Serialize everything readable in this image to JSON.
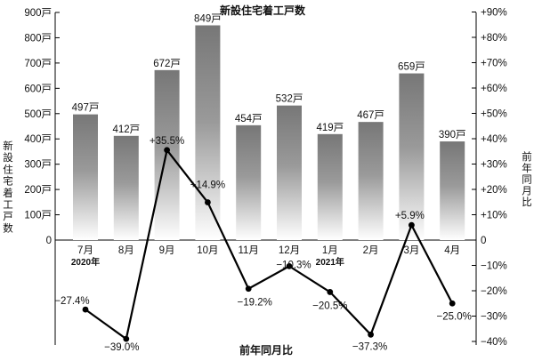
{
  "chart_data": {
    "type": "bar+line",
    "title": "新設住宅着工戸数",
    "bottom_title": "前年同月比",
    "left_axis": {
      "label": "新設住宅着工戸数",
      "ticks": [
        "0",
        "100戸",
        "200戸",
        "300戸",
        "400戸",
        "500戸",
        "600戸",
        "700戸",
        "800戸",
        "900戸"
      ],
      "ylim": [
        0,
        900
      ]
    },
    "right_axis": {
      "label": "前年同月比",
      "ticks": [
        "−40%",
        "−30%",
        "−20%",
        "−10%",
        "0",
        "+10%",
        "+20%",
        "+30%",
        "+40%",
        "+50%",
        "+60%",
        "+70%",
        "+80%",
        "+90%"
      ],
      "ylim": [
        -40,
        90
      ]
    },
    "categories": [
      "7月",
      "8月",
      "9月",
      "10月",
      "11月",
      "12月",
      "1月",
      "2月",
      "3月",
      "4月"
    ],
    "year_labels": [
      {
        "index": 0,
        "text": "2020年"
      },
      {
        "index": 6,
        "text": "2021年"
      }
    ],
    "bars": {
      "values": [
        497,
        412,
        672,
        849,
        454,
        532,
        419,
        467,
        659,
        390
      ],
      "labels": [
        "497戸",
        "412戸",
        "672戸",
        "849戸",
        "454戸",
        "532戸",
        "419戸",
        "467戸",
        "659戸",
        "390戸"
      ],
      "color_top": "#777777",
      "color_bottom": "#ffffff"
    },
    "line": {
      "values": [
        -27.4,
        -39.0,
        35.5,
        14.9,
        -19.2,
        -10.3,
        -20.5,
        -37.3,
        5.9,
        -25.0
      ],
      "labels": [
        "−27.4%",
        "−39.0%",
        "+35.5%",
        "+14.9%",
        "−19.2%",
        "−10.3%",
        "−20.5%",
        "−37.3%",
        "+5.9%",
        "−25.0%"
      ],
      "color": "#000000"
    }
  }
}
